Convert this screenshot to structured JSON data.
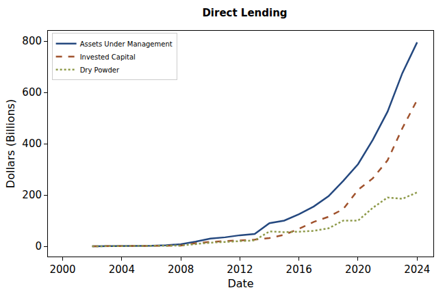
{
  "chart_data": {
    "type": "line",
    "title": "Direct Lending",
    "x_label": "Date",
    "y_label": "Dollars (Billions)",
    "x": [
      2002,
      2003,
      2004,
      2005,
      2006,
      2007,
      2008,
      2009,
      2010,
      2011,
      2012,
      2013,
      2014,
      2015,
      2016,
      2017,
      2018,
      2019,
      2020,
      2021,
      2022,
      2023,
      2024
    ],
    "series": [
      {
        "name": "Assets Under Management",
        "color": "#24487f",
        "line_style": "solid",
        "values": [
          0,
          0,
          0,
          1,
          2,
          4,
          8,
          18,
          30,
          35,
          43,
          48,
          90,
          100,
          125,
          155,
          195,
          255,
          320,
          415,
          525,
          675,
          795
        ]
      },
      {
        "name": "Invested Capital",
        "color": "#a0522d",
        "line_style": "dash",
        "values": [
          0,
          0,
          0,
          0,
          1,
          2,
          3,
          12,
          17,
          20,
          23,
          26,
          32,
          45,
          68,
          95,
          115,
          145,
          220,
          265,
          335,
          460,
          570
        ]
      },
      {
        "name": "Dry Powder",
        "color": "#8e9a4a",
        "line_style": "dot",
        "values": [
          0,
          0,
          0,
          0,
          1,
          2,
          3,
          8,
          14,
          17,
          20,
          23,
          58,
          55,
          57,
          60,
          70,
          100,
          100,
          150,
          190,
          185,
          210
        ]
      }
    ],
    "xlim": [
      1999,
      2025.1
    ],
    "xticks": [
      2000,
      2004,
      2008,
      2012,
      2016,
      2020,
      2024
    ],
    "ylim": [
      -40,
      840
    ],
    "yticks": [
      0,
      200,
      400,
      600,
      800
    ],
    "grid": false,
    "legend": "upper left"
  }
}
